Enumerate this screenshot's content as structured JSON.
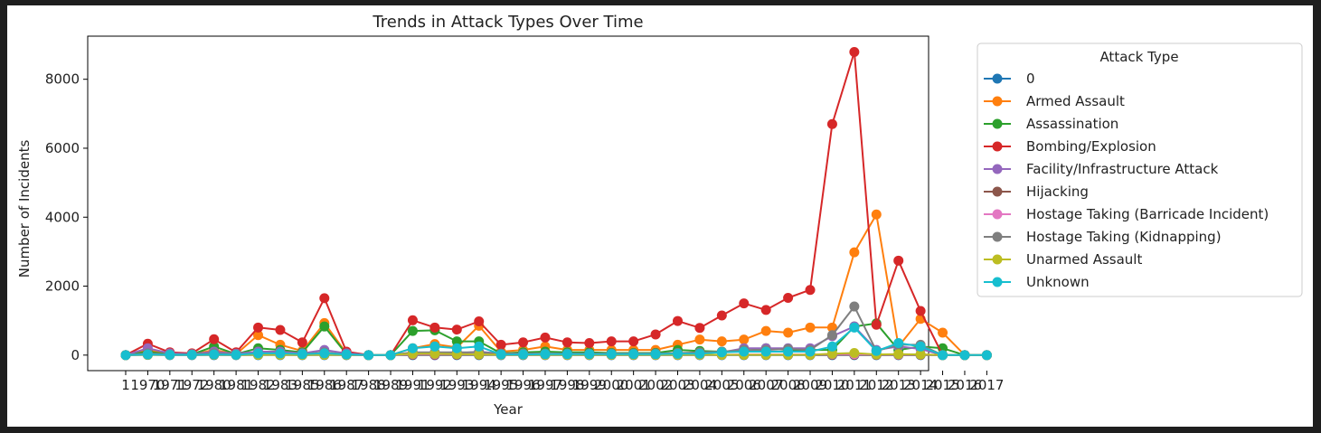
{
  "chart_data": {
    "type": "line",
    "title": "Trends in Attack Types Over Time",
    "xlabel": "Year",
    "ylabel": "Number of Incidents",
    "ylim": [
      -450,
      9250
    ],
    "yticks": [
      0,
      2000,
      4000,
      6000,
      8000
    ],
    "grid": false,
    "legend_title": "Attack Type",
    "legend_position": "outside-right",
    "x": [
      "1",
      "1970",
      "1971",
      "1972",
      "1980",
      "1981",
      "1982",
      "1983",
      "1985",
      "1986",
      "1987",
      "1988",
      "1989",
      "1991",
      "1992",
      "1993",
      "1994",
      "1995",
      "1996",
      "1997",
      "1998",
      "1999",
      "2000",
      "2001",
      "2002",
      "2003",
      "2004",
      "2005",
      "2006",
      "2007",
      "2008",
      "2009",
      "2010",
      "2011",
      "2012",
      "2013",
      "2014",
      "2015",
      "2016",
      "2017"
    ],
    "series": [
      {
        "name": "0",
        "color": "#1f77b4",
        "values": [
          0,
          5,
          0,
          0,
          0,
          0,
          0,
          0,
          0,
          0,
          0,
          0,
          0,
          0,
          0,
          0,
          0,
          0,
          0,
          0,
          0,
          0,
          0,
          0,
          0,
          0,
          0,
          0,
          0,
          0,
          0,
          0,
          0,
          0,
          0,
          0,
          0,
          0,
          0,
          0
        ]
      },
      {
        "name": "Armed Assault",
        "color": "#ff7f0e",
        "values": [
          0,
          150,
          20,
          20,
          150,
          30,
          580,
          300,
          120,
          930,
          50,
          0,
          0,
          200,
          320,
          220,
          850,
          100,
          150,
          250,
          150,
          150,
          150,
          150,
          150,
          300,
          450,
          400,
          450,
          700,
          650,
          800,
          800,
          2980,
          4080,
          250,
          1050,
          650,
          0,
          0
        ]
      },
      {
        "name": "Assassination",
        "color": "#2ca02c",
        "values": [
          0,
          100,
          20,
          20,
          250,
          30,
          200,
          150,
          80,
          830,
          30,
          0,
          0,
          700,
          720,
          400,
          400,
          50,
          80,
          100,
          80,
          80,
          60,
          60,
          60,
          150,
          120,
          100,
          120,
          200,
          150,
          150,
          150,
          830,
          920,
          150,
          250,
          200,
          0,
          0
        ]
      },
      {
        "name": "Bombing/Explosion",
        "color": "#d62728",
        "values": [
          0,
          330,
          80,
          50,
          460,
          80,
          800,
          730,
          370,
          1650,
          100,
          0,
          0,
          1010,
          800,
          740,
          980,
          300,
          370,
          510,
          370,
          350,
          400,
          400,
          600,
          990,
          790,
          1150,
          1500,
          1310,
          1660,
          1890,
          6700,
          8790,
          880,
          2740,
          1280,
          0,
          0,
          0
        ]
      },
      {
        "name": "Facility/Infrastructure Attack",
        "color": "#9467bd",
        "values": [
          0,
          200,
          50,
          30,
          100,
          40,
          100,
          100,
          50,
          150,
          50,
          0,
          0,
          50,
          0,
          50,
          100,
          40,
          40,
          40,
          40,
          40,
          40,
          40,
          40,
          60,
          60,
          80,
          200,
          200,
          200,
          200,
          550,
          830,
          150,
          250,
          180,
          0,
          0,
          0
        ]
      },
      {
        "name": "Hijacking",
        "color": "#8c564b",
        "values": [
          0,
          10,
          5,
          5,
          10,
          5,
          10,
          10,
          5,
          10,
          5,
          0,
          0,
          10,
          10,
          10,
          10,
          5,
          5,
          5,
          5,
          5,
          5,
          5,
          5,
          5,
          5,
          5,
          5,
          5,
          5,
          5,
          10,
          10,
          5,
          5,
          5,
          0,
          0,
          0
        ]
      },
      {
        "name": "Hostage Taking (Barricade Incident)",
        "color": "#e377c2",
        "values": [
          0,
          30,
          10,
          10,
          30,
          10,
          30,
          30,
          10,
          30,
          10,
          0,
          0,
          30,
          30,
          30,
          30,
          10,
          10,
          10,
          10,
          10,
          10,
          10,
          10,
          10,
          10,
          10,
          20,
          20,
          20,
          20,
          30,
          30,
          20,
          20,
          20,
          0,
          0,
          0
        ]
      },
      {
        "name": "Hostage Taking (Kidnapping)",
        "color": "#7f7f7f",
        "values": [
          0,
          50,
          20,
          20,
          50,
          20,
          50,
          50,
          30,
          80,
          20,
          0,
          0,
          80,
          80,
          80,
          80,
          40,
          40,
          40,
          40,
          40,
          40,
          40,
          40,
          60,
          80,
          100,
          150,
          150,
          180,
          150,
          580,
          1410,
          120,
          300,
          300,
          0,
          0,
          0
        ]
      },
      {
        "name": "Unarmed Assault",
        "color": "#bcbd22",
        "values": [
          0,
          10,
          5,
          5,
          10,
          5,
          10,
          10,
          5,
          10,
          5,
          0,
          0,
          40,
          40,
          30,
          20,
          10,
          10,
          10,
          10,
          10,
          10,
          10,
          10,
          10,
          10,
          10,
          10,
          10,
          10,
          10,
          40,
          60,
          20,
          30,
          20,
          0,
          0,
          0
        ]
      },
      {
        "name": "Unknown",
        "color": "#17becf",
        "values": [
          0,
          20,
          10,
          10,
          20,
          10,
          50,
          50,
          30,
          50,
          20,
          0,
          0,
          200,
          250,
          200,
          250,
          20,
          20,
          30,
          30,
          30,
          30,
          30,
          30,
          40,
          40,
          80,
          100,
          100,
          100,
          100,
          250,
          800,
          120,
          350,
          250,
          0,
          0,
          0
        ]
      }
    ]
  }
}
